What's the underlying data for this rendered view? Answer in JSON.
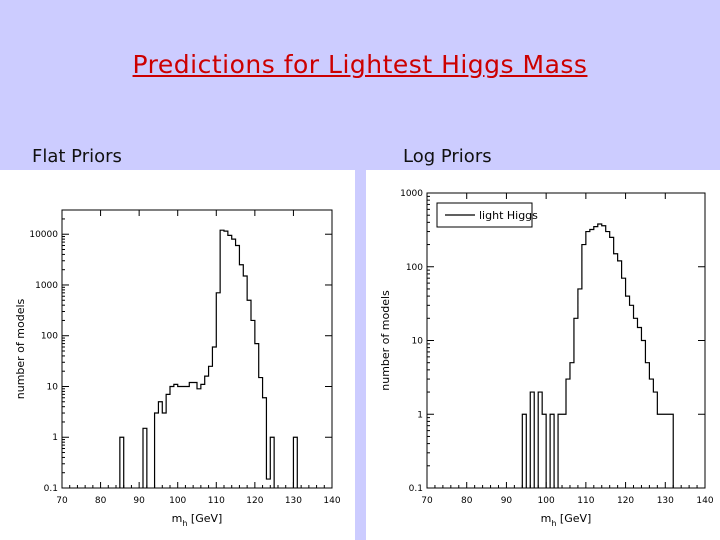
{
  "slide": {
    "title": "Predictions for Lightest Higgs Mass",
    "left_label": "Flat Priors",
    "right_label": "Log Priors"
  },
  "chart_data": [
    {
      "type": "histogram",
      "xlabel_main": "m",
      "xlabel_sub": "h",
      "xlabel_unit": " [GeV]",
      "ylabel": "number of models",
      "xlim": [
        70,
        140
      ],
      "xticks": [
        "70",
        "80",
        "90",
        "100",
        "110",
        "120",
        "130",
        "140"
      ],
      "ylim": [
        0.1,
        30000
      ],
      "yscale": "log",
      "yticks": [
        "0.1",
        "1",
        "10",
        "100",
        "1000",
        "10000"
      ],
      "bin_width": 1,
      "bins": [
        [
          85,
          1
        ],
        [
          91,
          1.5
        ],
        [
          94,
          3
        ],
        [
          95,
          5
        ],
        [
          96,
          3
        ],
        [
          97,
          7
        ],
        [
          98,
          10
        ],
        [
          99,
          11
        ],
        [
          100,
          10
        ],
        [
          101,
          10
        ],
        [
          102,
          10
        ],
        [
          103,
          12
        ],
        [
          104,
          12
        ],
        [
          105,
          9
        ],
        [
          106,
          11
        ],
        [
          107,
          16
        ],
        [
          108,
          25
        ],
        [
          109,
          60
        ],
        [
          110,
          700
        ],
        [
          111,
          12000
        ],
        [
          112,
          11500
        ],
        [
          113,
          9500
        ],
        [
          114,
          8000
        ],
        [
          115,
          6000
        ],
        [
          116,
          2500
        ],
        [
          117,
          1500
        ],
        [
          118,
          500
        ],
        [
          119,
          200
        ],
        [
          120,
          70
        ],
        [
          121,
          15
        ],
        [
          122,
          6
        ],
        [
          123,
          0.15
        ],
        [
          124,
          1
        ],
        [
          130,
          1
        ]
      ]
    },
    {
      "type": "histogram",
      "xlabel_main": "m",
      "xlabel_sub": "h",
      "xlabel_unit": " [GeV]",
      "ylabel": "number of models",
      "legend": "light Higgs",
      "legend_position": "top-left",
      "xlim": [
        70,
        140
      ],
      "xticks": [
        "70",
        "80",
        "90",
        "100",
        "110",
        "120",
        "130",
        "140"
      ],
      "ylim": [
        0.1,
        1000
      ],
      "yscale": "log",
      "yticks": [
        "0.1",
        "1",
        "10",
        "100",
        "1000"
      ],
      "bin_width": 1,
      "bins": [
        [
          94,
          1
        ],
        [
          96,
          2
        ],
        [
          98,
          2
        ],
        [
          99,
          1
        ],
        [
          101,
          1
        ],
        [
          103,
          1
        ],
        [
          104,
          1
        ],
        [
          105,
          3
        ],
        [
          106,
          5
        ],
        [
          107,
          20
        ],
        [
          108,
          50
        ],
        [
          109,
          200
        ],
        [
          110,
          300
        ],
        [
          111,
          320
        ],
        [
          112,
          350
        ],
        [
          113,
          380
        ],
        [
          114,
          360
        ],
        [
          115,
          300
        ],
        [
          116,
          250
        ],
        [
          117,
          150
        ],
        [
          118,
          120
        ],
        [
          119,
          70
        ],
        [
          120,
          40
        ],
        [
          121,
          30
        ],
        [
          122,
          20
        ],
        [
          123,
          15
        ],
        [
          124,
          10
        ],
        [
          125,
          5
        ],
        [
          126,
          3
        ],
        [
          127,
          2
        ],
        [
          128,
          1
        ],
        [
          129,
          1
        ],
        [
          130,
          1
        ],
        [
          131,
          1
        ]
      ]
    }
  ]
}
